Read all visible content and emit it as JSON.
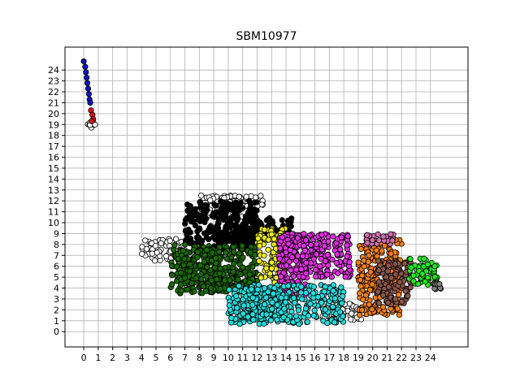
{
  "chart_data": {
    "type": "scatter",
    "title": "SBM10977",
    "xlabel": "",
    "ylabel": "",
    "xlim": [
      -1.3,
      26.6
    ],
    "ylim": [
      -1.4,
      26.1
    ],
    "x_ticks": [
      0,
      1,
      2,
      3,
      4,
      5,
      6,
      7,
      8,
      9,
      10,
      11,
      12,
      13,
      14,
      15,
      16,
      17,
      18,
      19,
      20,
      21,
      22,
      23,
      24
    ],
    "y_ticks": [
      0,
      1,
      2,
      3,
      4,
      5,
      6,
      7,
      8,
      9,
      10,
      11,
      12,
      13,
      14,
      15,
      16,
      17,
      18,
      19,
      20,
      21,
      22,
      23,
      24
    ],
    "grid": true,
    "series": [
      {
        "name": "white",
        "color": "#ffffff",
        "regions": [
          [
            5.5,
            7.5,
            1.5,
            1.0
          ],
          [
            9.5,
            11.5,
            1.5,
            1.0
          ],
          [
            18.0,
            1.8,
            1.5,
            0.8
          ],
          [
            0.5,
            19.0,
            0.3,
            0.3
          ],
          [
            11.0,
            12.0,
            1.5,
            0.5
          ]
        ]
      },
      {
        "name": "black",
        "color": "#000000",
        "regions": [
          [
            9.5,
            10.0,
            2.5,
            2.0
          ],
          [
            12.5,
            9.5,
            2.0,
            1.0
          ],
          [
            10.5,
            8.5,
            1.5,
            1.0
          ]
        ]
      },
      {
        "name": "darkgreen",
        "color": "#1a6b00",
        "regions": [
          [
            9.0,
            6.0,
            3.0,
            2.0
          ],
          [
            10.5,
            4.5,
            1.5,
            1.0
          ],
          [
            8.0,
            5.5,
            1.5,
            2.0
          ]
        ]
      },
      {
        "name": "yellow",
        "color": "#f0f020",
        "regions": [
          [
            13.0,
            7.0,
            1.0,
            2.5
          ]
        ]
      },
      {
        "name": "magenta",
        "color": "#e030e0",
        "regions": [
          [
            16.0,
            7.0,
            2.5,
            2.0
          ],
          [
            14.5,
            6.0,
            1.0,
            3.0
          ]
        ]
      },
      {
        "name": "cyan",
        "color": "#22dddd",
        "regions": [
          [
            14.0,
            2.5,
            4.0,
            1.8
          ],
          [
            12.5,
            2.5,
            1.5,
            1.5
          ]
        ]
      },
      {
        "name": "orange",
        "color": "#ff7f0e",
        "regions": [
          [
            20.5,
            5.0,
            1.5,
            3.5
          ]
        ]
      },
      {
        "name": "pink",
        "color": "#d070b0",
        "regions": [
          [
            20.5,
            8.5,
            1.0,
            0.5
          ]
        ]
      },
      {
        "name": "brown",
        "color": "#8c564b",
        "regions": [
          [
            21.5,
            4.5,
            1.2,
            2.0
          ]
        ]
      },
      {
        "name": "green",
        "color": "#22ee22",
        "regions": [
          [
            23.5,
            5.5,
            1.0,
            1.2
          ]
        ]
      },
      {
        "name": "grey",
        "color": "#7f7f7f",
        "regions": [
          [
            24.5,
            4.2,
            0.3,
            0.3
          ]
        ]
      },
      {
        "name": "blue",
        "color": "#1010c0",
        "points": [
          [
            0,
            24.8
          ],
          [
            0.1,
            24.3
          ],
          [
            0.15,
            23.8
          ],
          [
            0.2,
            23.3
          ],
          [
            0.25,
            22.8
          ],
          [
            0.3,
            22.3
          ],
          [
            0.35,
            21.8
          ],
          [
            0.4,
            21.3
          ],
          [
            0.45,
            21.0
          ]
        ]
      },
      {
        "name": "red",
        "color": "#dd1010",
        "points": [
          [
            0.5,
            20.3
          ],
          [
            0.6,
            19.9
          ],
          [
            0.65,
            19.5
          ],
          [
            0.55,
            19.3
          ]
        ]
      }
    ]
  }
}
